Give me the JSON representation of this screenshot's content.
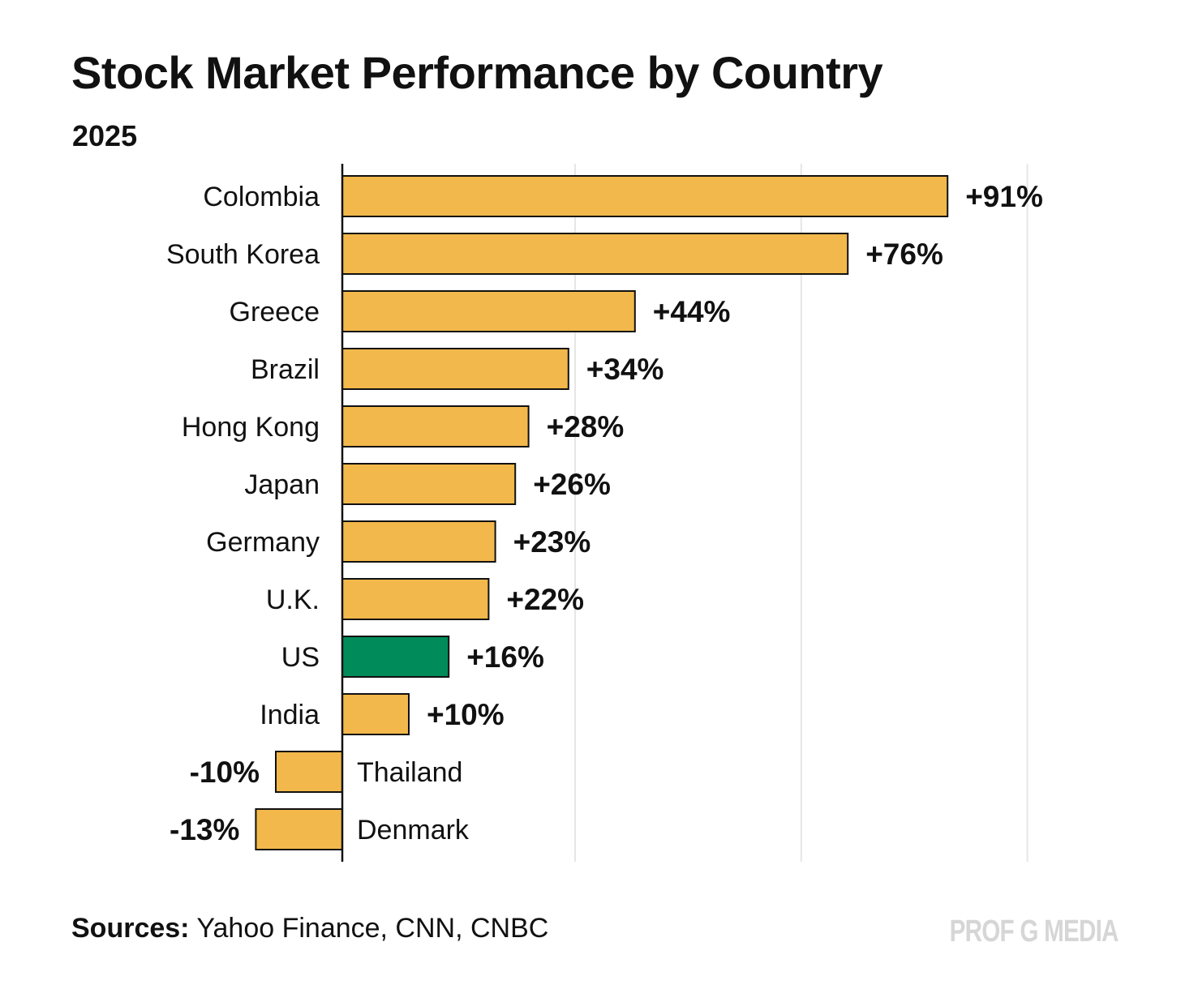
{
  "chart_data": {
    "type": "bar",
    "orientation": "horizontal",
    "title": "Stock Market Performance by Country",
    "subtitle": "2025",
    "unit": "%",
    "categories": [
      "Colombia",
      "South Korea",
      "Greece",
      "Brazil",
      "Hong Kong",
      "Japan",
      "Germany",
      "U.K.",
      "US",
      "India",
      "Thailand",
      "Denmark"
    ],
    "values": [
      91,
      76,
      44,
      34,
      28,
      26,
      23,
      22,
      16,
      10,
      -10,
      -13
    ],
    "value_labels": [
      "+91%",
      "+76%",
      "+44%",
      "+34%",
      "+28%",
      "+26%",
      "+23%",
      "+22%",
      "+16%",
      "+10%",
      "-10%",
      "-13%"
    ],
    "highlight_category": "US",
    "xlim": [
      -15,
      106
    ],
    "gridlines_at": [
      35,
      69,
      103
    ],
    "grid": true,
    "legend": null,
    "colors": {
      "bar": "#f2b84b",
      "highlight": "#008c5a",
      "outline": "#111111",
      "grid": "#e6e6e6"
    }
  },
  "sources_label": "Sources:",
  "sources_text": "Yahoo Finance, CNN, CNBC",
  "brand": "PROF G MEDIA"
}
